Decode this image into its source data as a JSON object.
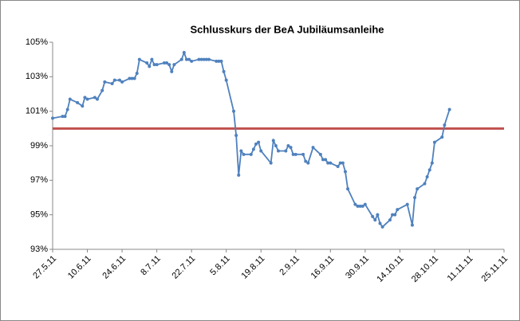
{
  "chart_data": {
    "type": "line",
    "title": "Schlusskurs der BeA Jubiläumsanleihe",
    "x": [
      "2011-05-27",
      "2011-05-31",
      "2011-06-01",
      "2011-06-02",
      "2011-06-03",
      "2011-06-06",
      "2011-06-08",
      "2011-06-09",
      "2011-06-10",
      "2011-06-13",
      "2011-06-14",
      "2011-06-16",
      "2011-06-17",
      "2011-06-20",
      "2011-06-21",
      "2011-06-23",
      "2011-06-24",
      "2011-06-27",
      "2011-06-28",
      "2011-06-29",
      "2011-06-30",
      "2011-07-01",
      "2011-07-04",
      "2011-07-05",
      "2011-07-06",
      "2011-07-07",
      "2011-07-08",
      "2011-07-11",
      "2011-07-12",
      "2011-07-13",
      "2011-07-14",
      "2011-07-15",
      "2011-07-18",
      "2011-07-19",
      "2011-07-20",
      "2011-07-21",
      "2011-07-22",
      "2011-07-25",
      "2011-07-26",
      "2011-07-27",
      "2011-07-28",
      "2011-07-29",
      "2011-08-01",
      "2011-08-02",
      "2011-08-03",
      "2011-08-04",
      "2011-08-05",
      "2011-08-08",
      "2011-08-09",
      "2011-08-10",
      "2011-08-11",
      "2011-08-12",
      "2011-08-15",
      "2011-08-16",
      "2011-08-17",
      "2011-08-18",
      "2011-08-19",
      "2011-08-23",
      "2011-08-24",
      "2011-08-25",
      "2011-08-26",
      "2011-08-29",
      "2011-08-30",
      "2011-08-31",
      "2011-09-01",
      "2011-09-02",
      "2011-09-05",
      "2011-09-06",
      "2011-09-07",
      "2011-09-09",
      "2011-09-12",
      "2011-09-13",
      "2011-09-14",
      "2011-09-15",
      "2011-09-16",
      "2011-09-19",
      "2011-09-20",
      "2011-09-21",
      "2011-09-22",
      "2011-09-23",
      "2011-09-26",
      "2011-09-27",
      "2011-09-28",
      "2011-09-29",
      "2011-09-30",
      "2011-10-03",
      "2011-10-04",
      "2011-10-05",
      "2011-10-06",
      "2011-10-07",
      "2011-10-10",
      "2011-10-11",
      "2011-10-12",
      "2011-10-13",
      "2011-10-17",
      "2011-10-19",
      "2011-10-20",
      "2011-10-21",
      "2011-10-24",
      "2011-10-25",
      "2011-10-26",
      "2011-10-27",
      "2011-10-28",
      "2011-10-31",
      "2011-11-01",
      "2011-11-03"
    ],
    "series": [
      {
        "name": "Schlusskurs",
        "color": "#4f81bd",
        "values": [
          100.6,
          100.7,
          100.7,
          101.1,
          101.7,
          101.5,
          101.3,
          101.8,
          101.7,
          101.8,
          101.7,
          102.2,
          102.7,
          102.6,
          102.8,
          102.8,
          102.7,
          102.9,
          102.9,
          102.9,
          103.2,
          104.0,
          103.8,
          103.6,
          104.0,
          103.7,
          103.7,
          103.8,
          103.8,
          103.7,
          103.3,
          103.7,
          104.0,
          104.4,
          104.0,
          104.0,
          103.9,
          104.0,
          104.0,
          104.0,
          104.0,
          104.0,
          103.9,
          103.9,
          103.9,
          103.3,
          102.8,
          101.0,
          99.6,
          97.3,
          98.7,
          98.5,
          98.5,
          98.8,
          99.1,
          99.2,
          98.7,
          98.0,
          99.3,
          99.0,
          98.7,
          98.7,
          99.0,
          98.9,
          98.5,
          98.5,
          98.5,
          98.1,
          98.0,
          98.9,
          98.5,
          98.2,
          98.2,
          98.0,
          98.0,
          97.8,
          98.0,
          98.0,
          97.5,
          96.5,
          95.6,
          95.5,
          95.5,
          95.5,
          95.6,
          94.9,
          94.7,
          95.0,
          94.5,
          94.3,
          94.7,
          95.0,
          95.0,
          95.3,
          95.6,
          94.4,
          96.0,
          96.5,
          96.8,
          97.2,
          97.6,
          98.0,
          99.2,
          99.5,
          100.2,
          101.1
        ]
      }
    ],
    "reference_line": {
      "value": 100,
      "color": "#c0504d"
    },
    "xlim": [
      "2011-05-27",
      "2011-11-25"
    ],
    "xticks": [
      {
        "value": "2011-05-27",
        "label": "27.5.11"
      },
      {
        "value": "2011-06-10",
        "label": "10.6.11"
      },
      {
        "value": "2011-06-24",
        "label": "24.6.11"
      },
      {
        "value": "2011-07-08",
        "label": "8.7.11"
      },
      {
        "value": "2011-07-22",
        "label": "22.7.11"
      },
      {
        "value": "2011-08-05",
        "label": "5.8.11"
      },
      {
        "value": "2011-08-19",
        "label": "19.8.11"
      },
      {
        "value": "2011-09-02",
        "label": "2.9.11"
      },
      {
        "value": "2011-09-16",
        "label": "16.9.11"
      },
      {
        "value": "2011-09-30",
        "label": "30.9.11"
      },
      {
        "value": "2011-10-14",
        "label": "14.10.11"
      },
      {
        "value": "2011-10-28",
        "label": "28.10.11"
      },
      {
        "value": "2011-11-11",
        "label": "11.11.11"
      },
      {
        "value": "2011-11-25",
        "label": "25.11.11"
      }
    ],
    "ylim": [
      93,
      105
    ],
    "yticks": [
      {
        "value": 93,
        "label": "93%"
      },
      {
        "value": 95,
        "label": "95%"
      },
      {
        "value": 97,
        "label": "97%"
      },
      {
        "value": 99,
        "label": "99%"
      },
      {
        "value": 101,
        "label": "101%"
      },
      {
        "value": 103,
        "label": "103%"
      },
      {
        "value": 105,
        "label": "105%"
      }
    ]
  }
}
